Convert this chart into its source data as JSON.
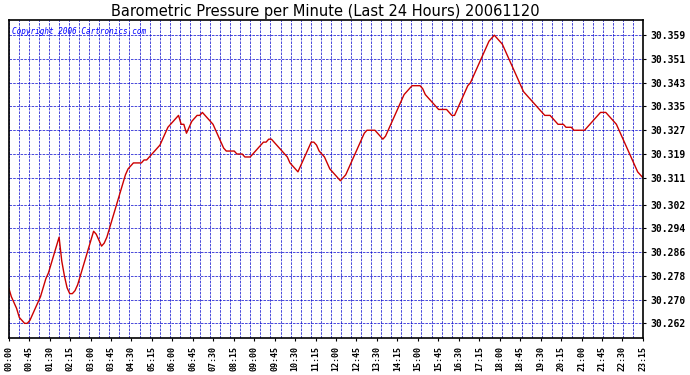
{
  "title": "Barometric Pressure per Minute (Last 24 Hours) 20061120",
  "copyright_text": "Copyright 2006 Cartronics.com",
  "line_color": "#cc0000",
  "line_width": 1.0,
  "plot_bg_color": "#ffffff",
  "figure_bg_color": "#ffffff",
  "grid_color": "#0000cc",
  "yticks": [
    30.262,
    30.27,
    30.278,
    30.286,
    30.294,
    30.302,
    30.311,
    30.319,
    30.327,
    30.335,
    30.343,
    30.351,
    30.359
  ],
  "ylim": [
    30.257,
    30.364
  ],
  "xtick_labels": [
    "00:00",
    "00:45",
    "01:30",
    "02:15",
    "03:00",
    "03:45",
    "04:30",
    "05:15",
    "06:00",
    "06:45",
    "07:30",
    "08:15",
    "09:00",
    "09:45",
    "10:30",
    "11:15",
    "12:00",
    "12:45",
    "13:30",
    "14:15",
    "15:00",
    "15:45",
    "16:30",
    "17:15",
    "18:00",
    "18:45",
    "19:30",
    "20:15",
    "21:00",
    "21:45",
    "22:30",
    "23:15"
  ],
  "pressure_data": [
    30.274,
    30.271,
    30.269,
    30.267,
    30.264,
    30.263,
    30.262,
    30.262,
    30.263,
    30.265,
    30.267,
    30.269,
    30.271,
    30.274,
    30.277,
    30.279,
    30.282,
    30.285,
    30.288,
    30.291,
    30.283,
    30.278,
    30.274,
    30.272,
    30.272,
    30.273,
    30.275,
    30.278,
    30.281,
    30.284,
    30.287,
    30.29,
    30.293,
    30.292,
    30.29,
    30.288,
    30.289,
    30.291,
    30.294,
    30.297,
    30.3,
    30.303,
    30.306,
    30.309,
    30.312,
    30.314,
    30.315,
    30.316,
    30.316,
    30.316,
    30.316,
    30.317,
    30.317,
    30.318,
    30.319,
    30.32,
    30.321,
    30.322,
    30.324,
    30.326,
    30.328,
    30.329,
    30.33,
    30.331,
    30.332,
    30.329,
    30.329,
    30.326,
    30.328,
    30.33,
    30.331,
    30.332,
    30.332,
    30.333,
    30.332,
    30.331,
    30.33,
    30.329,
    30.327,
    30.325,
    30.323,
    30.321,
    30.32,
    30.32,
    30.32,
    30.32,
    30.319,
    30.319,
    30.319,
    30.318,
    30.318,
    30.318,
    30.319,
    30.32,
    30.321,
    30.322,
    30.323,
    30.323,
    30.324,
    30.324,
    30.323,
    30.322,
    30.321,
    30.32,
    30.319,
    30.318,
    30.316,
    30.315,
    30.314,
    30.313,
    30.315,
    30.317,
    30.319,
    30.321,
    30.323,
    30.323,
    30.322,
    30.32,
    30.319,
    30.318,
    30.316,
    30.314,
    30.313,
    30.312,
    30.311,
    30.31,
    30.311,
    30.312,
    30.314,
    30.316,
    30.318,
    30.32,
    30.322,
    30.324,
    30.326,
    30.327,
    30.327,
    30.327,
    30.327,
    30.326,
    30.325,
    30.324,
    30.325,
    30.327,
    30.329,
    30.331,
    30.333,
    30.335,
    30.337,
    30.339,
    30.34,
    30.341,
    30.342,
    30.342,
    30.342,
    30.342,
    30.341,
    30.339,
    30.338,
    30.337,
    30.336,
    30.335,
    30.334,
    30.334,
    30.334,
    30.334,
    30.333,
    30.332,
    30.332,
    30.334,
    30.336,
    30.338,
    30.34,
    30.342,
    30.343,
    30.345,
    30.347,
    30.349,
    30.351,
    30.353,
    30.355,
    30.357,
    30.358,
    30.359,
    30.358,
    30.357,
    30.356,
    30.354,
    30.352,
    30.35,
    30.348,
    30.346,
    30.344,
    30.342,
    30.34,
    30.339,
    30.338,
    30.337,
    30.336,
    30.335,
    30.334,
    30.333,
    30.332,
    30.332,
    30.332,
    30.331,
    30.33,
    30.329,
    30.329,
    30.329,
    30.328,
    30.328,
    30.328,
    30.327,
    30.327,
    30.327,
    30.327,
    30.327,
    30.328,
    30.329,
    30.33,
    30.331,
    30.332,
    30.333,
    30.333,
    30.333,
    30.332,
    30.331,
    30.33,
    30.329,
    30.327,
    30.325,
    30.323,
    30.321,
    30.319,
    30.317,
    30.315,
    30.313,
    30.312,
    30.311
  ]
}
